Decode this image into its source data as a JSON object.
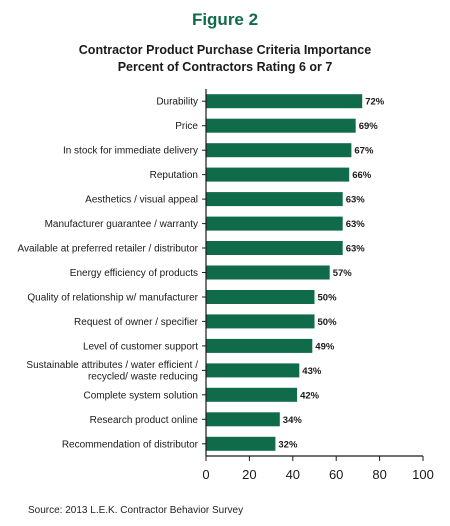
{
  "figure_label": "Figure 2",
  "source_note": "Source: 2013 L.E.K. Contractor Behavior Survey",
  "colors": {
    "bar": "#0f6b4a",
    "axis": "#1a1a1a",
    "title_accent": "#0f6b4a"
  },
  "chart_data": {
    "type": "bar",
    "orientation": "horizontal",
    "title": "Contractor Product Purchase Criteria Importance",
    "subtitle": "Percent of Contractors Rating 6 or 7",
    "categories": [
      "Durability",
      "Price",
      "In stock for immediate delivery",
      "Reputation",
      "Aesthetics / visual appeal",
      "Manufacturer guarantee / warranty",
      "Available at preferred retailer / distributor",
      "Energy efficiency of products",
      "Quality of relationship w/ manufacturer",
      "Request of owner / specifier",
      "Level of customer support",
      "Sustainable attributes / water efficient / recycled/ waste reducing",
      "Complete system solution",
      "Research product online",
      "Recommendation of distributor"
    ],
    "category_lines": [
      [
        "Durability"
      ],
      [
        "Price"
      ],
      [
        "In stock for immediate delivery"
      ],
      [
        "Reputation"
      ],
      [
        "Aesthetics / visual appeal"
      ],
      [
        "Manufacturer guarantee / warranty"
      ],
      [
        "Available at preferred retailer / distributor"
      ],
      [
        "Energy efficiency of products"
      ],
      [
        "Quality of relationship w/ manufacturer"
      ],
      [
        "Request of owner / specifier"
      ],
      [
        "Level of customer support"
      ],
      [
        "Sustainable attributes / water efficient /",
        "recycled/ waste reducing"
      ],
      [
        "Complete system solution"
      ],
      [
        "Research product online"
      ],
      [
        "Recommendation of distributor"
      ]
    ],
    "values": [
      72,
      69,
      67,
      66,
      63,
      63,
      63,
      57,
      50,
      50,
      49,
      43,
      42,
      34,
      32
    ],
    "value_labels": [
      "72%",
      "69%",
      "67%",
      "66%",
      "63%",
      "63%",
      "63%",
      "57%",
      "50%",
      "50%",
      "49%",
      "43%",
      "42%",
      "34%",
      "32%"
    ],
    "xlim": [
      0,
      100
    ],
    "xticks": [
      0,
      20,
      40,
      60,
      80,
      100
    ],
    "xlabel": "",
    "ylabel": "",
    "grid": false,
    "legend": "none"
  }
}
